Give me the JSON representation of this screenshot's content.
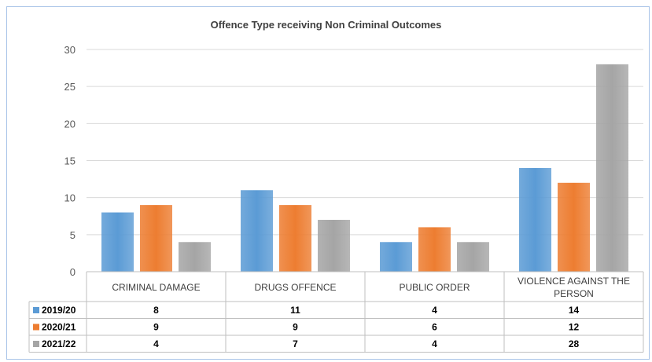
{
  "chart_data": {
    "type": "bar",
    "title": "Offence Type receiving Non Criminal  Outcomes",
    "categories": [
      "CRIMINAL DAMAGE",
      "DRUGS OFFENCE",
      "PUBLIC ORDER",
      "VIOLENCE AGAINST THE PERSON"
    ],
    "category_lines": [
      [
        "CRIMINAL DAMAGE"
      ],
      [
        "DRUGS OFFENCE"
      ],
      [
        "PUBLIC ORDER"
      ],
      [
        "VIOLENCE AGAINST THE",
        "PERSON"
      ]
    ],
    "series": [
      {
        "name": "2019/20",
        "color": "#5b9bd5",
        "values": [
          8,
          11,
          4,
          14
        ]
      },
      {
        "name": "2020/21",
        "color": "#ed7d31",
        "values": [
          9,
          9,
          6,
          12
        ]
      },
      {
        "name": "2021/22",
        "color": "#a5a5a5",
        "values": [
          4,
          7,
          4,
          28
        ]
      }
    ],
    "ylim": [
      0,
      30
    ],
    "yticks": [
      0,
      5,
      10,
      15,
      20,
      25,
      30
    ],
    "grid": true,
    "data_table": true
  }
}
